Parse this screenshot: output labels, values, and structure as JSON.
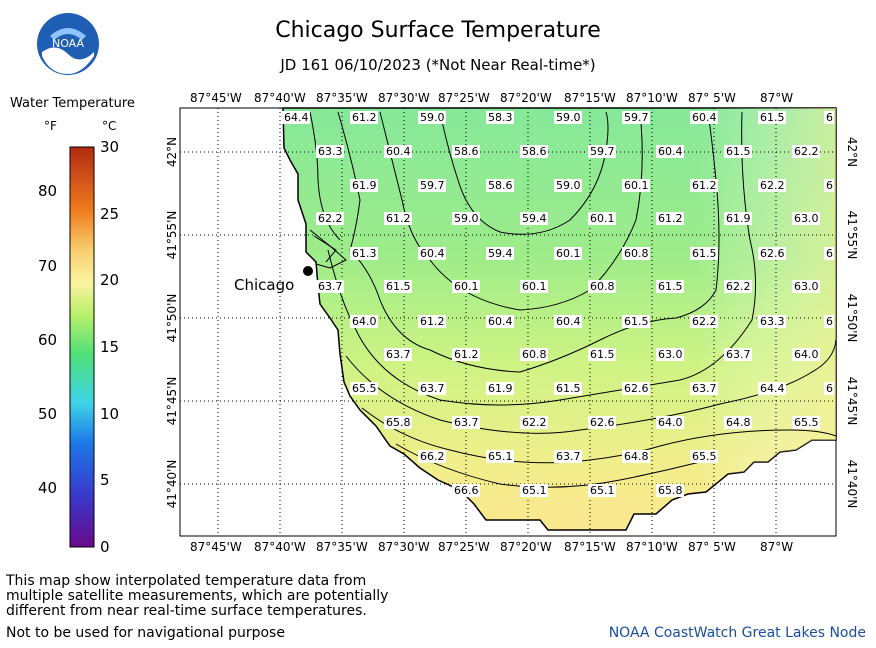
{
  "title": "Chicago Surface Temperature",
  "subtitle": "JD 161 06/10/2023 (*Not Near Real-time*)",
  "logo_text": "NOAA",
  "legend": {
    "title": "Water Temperature",
    "unit_f": "°F",
    "unit_c": "°C",
    "f_ticks": [
      "80",
      "70",
      "60",
      "50",
      "40"
    ],
    "c_ticks": [
      "30",
      "25",
      "20",
      "15",
      "10",
      "5",
      "0"
    ]
  },
  "axes": {
    "lon_labels": [
      "87°45'W",
      "87°40'W",
      "87°35'W",
      "87°30'W",
      "87°25'W",
      "87°20'W",
      "87°15'W",
      "87°10'W",
      "87° 5'W",
      "87°W"
    ],
    "lat_labels": [
      "42°N",
      "41°55'N",
      "41°50'N",
      "41°45'N",
      "41°40'N"
    ]
  },
  "city": {
    "name": "Chicago"
  },
  "temperature_rows": [
    [
      "64.4",
      "61.2",
      "59.0",
      "58.3",
      "59.0",
      "59.7",
      "60.4",
      "61.5",
      "6"
    ],
    [
      "63.3",
      "60.4",
      "58.6",
      "58.6",
      "59.7",
      "60.4",
      "61.5",
      "62.2"
    ],
    [
      "61.9",
      "59.7",
      "58.6",
      "59.0",
      "60.1",
      "61.2",
      "62.2",
      "6"
    ],
    [
      "62.2",
      "61.2",
      "59.0",
      "59.4",
      "60.1",
      "61.2",
      "61.9",
      "63.0"
    ],
    [
      "61.3",
      "60.4",
      "59.4",
      "60.1",
      "60.8",
      "61.5",
      "62.6",
      "6"
    ],
    [
      "63.7",
      "61.5",
      "60.1",
      "60.1",
      "60.8",
      "61.5",
      "62.2",
      "63.0"
    ],
    [
      "64.0",
      "61.2",
      "60.4",
      "60.4",
      "61.5",
      "62.2",
      "63.3",
      "6"
    ],
    [
      "63.7",
      "61.2",
      "60.8",
      "61.5",
      "63.0",
      "63.7",
      "64.0"
    ],
    [
      "65.5",
      "63.7",
      "61.9",
      "61.5",
      "62.6",
      "63.7",
      "64.4",
      "6"
    ],
    [
      "65.8",
      "63.7",
      "62.2",
      "62.6",
      "64.0",
      "64.8",
      "65.5"
    ],
    [
      "66.2",
      "65.1",
      "63.7",
      "64.8",
      "65.5"
    ],
    [
      "66.6",
      "65.1",
      "65.1",
      "65.8"
    ]
  ],
  "footnote": [
    "This map show interpolated temperature data from",
    "multiple satellite measurements, which are potentially",
    "different from near real-time surface temperatures."
  ],
  "nav_note": "Not to be used for navigational purpose",
  "credit": "NOAA CoastWatch Great Lakes Node"
}
